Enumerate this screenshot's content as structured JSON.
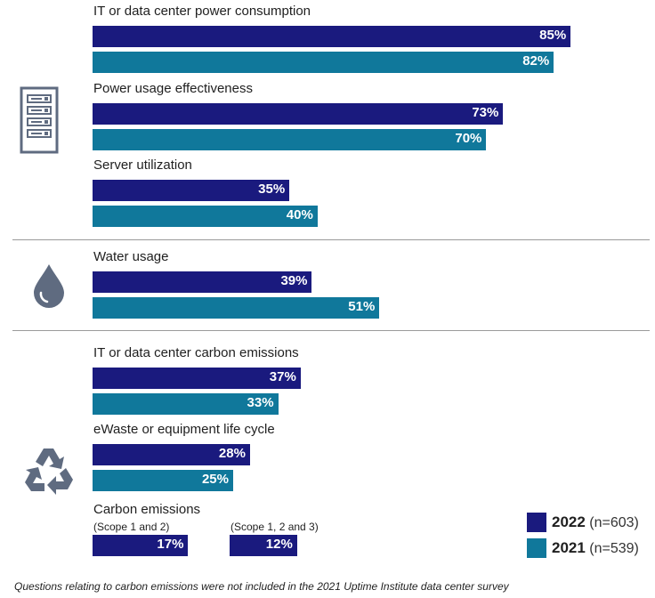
{
  "colors": {
    "y2022": "#1a1a7e",
    "y2021": "#10789b",
    "icon": "#5f6b80"
  },
  "chart_data": {
    "type": "bar",
    "orientation": "horizontal",
    "value_format": "percent",
    "xlim": [
      0,
      100
    ],
    "series": [
      {
        "name": "2022",
        "n": "(n=603)"
      },
      {
        "name": "2021",
        "n": "(n=539)"
      }
    ],
    "groups": [
      {
        "icon": "server-rack-icon",
        "items": [
          {
            "label": "IT or data center power consumption",
            "values": [
              85,
              82
            ]
          },
          {
            "label": "Power usage effectiveness",
            "values": [
              73,
              70
            ]
          },
          {
            "label": "Server utilization",
            "values": [
              35,
              40
            ]
          }
        ]
      },
      {
        "icon": "water-drop-icon",
        "items": [
          {
            "label": "Water usage",
            "values": [
              39,
              51
            ]
          }
        ]
      },
      {
        "icon": "recycle-icon",
        "items": [
          {
            "label": "IT or data center carbon emissions",
            "values": [
              37,
              33
            ]
          },
          {
            "label": "eWaste or equipment life cycle",
            "values": [
              28,
              25
            ]
          }
        ]
      }
    ],
    "carbon": {
      "label": "Carbon emissions",
      "items": [
        {
          "sublabel": "(Scope 1 and 2)",
          "value": 17
        },
        {
          "sublabel": "(Scope 1, 2 and 3)",
          "value": 12
        }
      ]
    },
    "footnote": "Questions relating to carbon emissions were not included in the 2021 Uptime Institute data center survey"
  }
}
